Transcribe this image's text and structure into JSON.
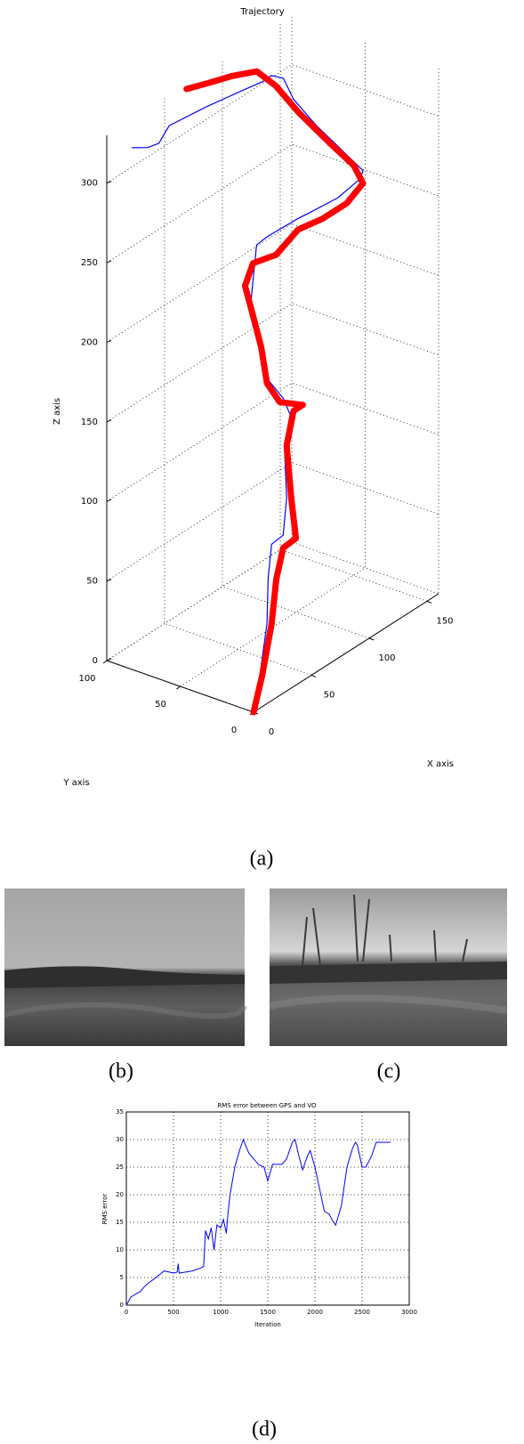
{
  "chart_data": [
    {
      "type": "line3d",
      "title": "Trajectory",
      "xlabel": "X axis",
      "ylabel": "Y axis",
      "zlabel": "Z axis",
      "xlim": [
        0,
        160
      ],
      "ylim": [
        0,
        100
      ],
      "zlim": [
        0,
        330
      ],
      "xticks": [
        0,
        50,
        100,
        150
      ],
      "yticks": [
        0,
        50,
        100
      ],
      "zticks": [
        0,
        50,
        100,
        150,
        200,
        250,
        300
      ],
      "grid": true,
      "series": [
        {
          "color": "#0000ff",
          "line_width": 1.2,
          "x": [
            1,
            18,
            37,
            38,
            41,
            51,
            54,
            52,
            57,
            51,
            37,
            29,
            23,
            28,
            37,
            64,
            74,
            98,
            118,
            120,
            102,
            130,
            136,
            140,
            136,
            135,
            115,
            85,
            54,
            45,
            35,
            22
          ],
          "y": [
            2,
            10,
            20,
            20,
            20,
            20,
            20,
            20,
            20,
            20,
            20,
            20,
            20,
            20,
            20,
            20,
            20,
            20,
            20,
            20,
            20,
            60,
            80,
            90,
            95,
            100,
            100,
            100,
            100,
            100,
            100,
            100
          ],
          "z": [
            0,
            11,
            32,
            60,
            80,
            81,
            103,
            137,
            154,
            167,
            186,
            212,
            240,
            274,
            275,
            274,
            273,
            271,
            274,
            278,
            299,
            289,
            296,
            304,
            306,
            301,
            304,
            308,
            311,
            304,
            306,
            312
          ]
        },
        {
          "color": "#ff0000",
          "line_width": 7,
          "x": [
            0,
            20,
            41,
            45,
            51,
            62,
            58,
            54,
            60,
            68,
            48,
            37,
            32,
            24,
            18,
            25,
            45,
            64,
            85,
            106,
            120,
            112,
            91,
            115,
            127,
            117,
            108,
            88,
            69
          ],
          "y": [
            0,
            10,
            20,
            20,
            20,
            20,
            20,
            20,
            20,
            20,
            20,
            20,
            20,
            20,
            20,
            20,
            20,
            20,
            20,
            20,
            20,
            20,
            20,
            60,
            85,
            90,
            100,
            100,
            100
          ],
          "z": [
            0,
            10,
            30,
            56,
            73,
            74,
            101,
            136,
            155,
            155,
            166,
            183,
            208,
            234,
            253,
            264,
            260,
            267,
            264,
            264,
            270,
            285,
            309,
            304,
            307,
            319,
            317,
            322,
            327
          ]
        }
      ]
    },
    {
      "type": "line",
      "title": "RMS error between GPS and VO",
      "xlabel": "Iteration",
      "ylabel": "RMS error",
      "xlim": [
        0,
        3000
      ],
      "ylim": [
        0,
        35
      ],
      "xticks": [
        0,
        500,
        1000,
        1500,
        2000,
        2500,
        3000
      ],
      "yticks": [
        0,
        5,
        10,
        15,
        20,
        25,
        30,
        35
      ],
      "grid": true,
      "x": [
        0,
        50,
        100,
        150,
        200,
        250,
        300,
        350,
        400,
        450,
        500,
        540,
        550,
        560,
        600,
        700,
        800,
        820,
        840,
        870,
        900,
        930,
        960,
        1000,
        1030,
        1060,
        1080,
        1100,
        1150,
        1200,
        1240,
        1300,
        1400,
        1460,
        1500,
        1550,
        1650,
        1700,
        1760,
        1790,
        1830,
        1870,
        1920,
        1950,
        2000,
        2050,
        2100,
        2150,
        2180,
        2220,
        2280,
        2340,
        2400,
        2430,
        2450,
        2500,
        2540,
        2600,
        2650,
        2700,
        2800
      ],
      "series": [
        {
          "color": "#0000ff",
          "values": [
            0,
            1.5,
            2,
            2.5,
            3.5,
            4.2,
            4.8,
            5.5,
            6.2,
            6,
            5.8,
            6,
            7.5,
            5.8,
            5.9,
            6.2,
            6.8,
            7,
            13.5,
            12,
            14,
            10,
            14.5,
            14,
            15.5,
            13,
            17,
            20,
            25,
            28,
            30,
            27.5,
            25.5,
            25,
            22.5,
            25.5,
            25.5,
            26.5,
            29.5,
            30,
            27,
            24.5,
            27,
            28,
            25,
            21,
            17,
            16.5,
            15.5,
            14.5,
            18,
            25,
            28.5,
            29.5,
            29,
            25,
            25,
            27,
            29.5,
            29.5,
            29.5
          ]
        }
      ]
    }
  ],
  "captions": [
    "(a)",
    "(b)",
    "(c)",
    "(d)"
  ]
}
